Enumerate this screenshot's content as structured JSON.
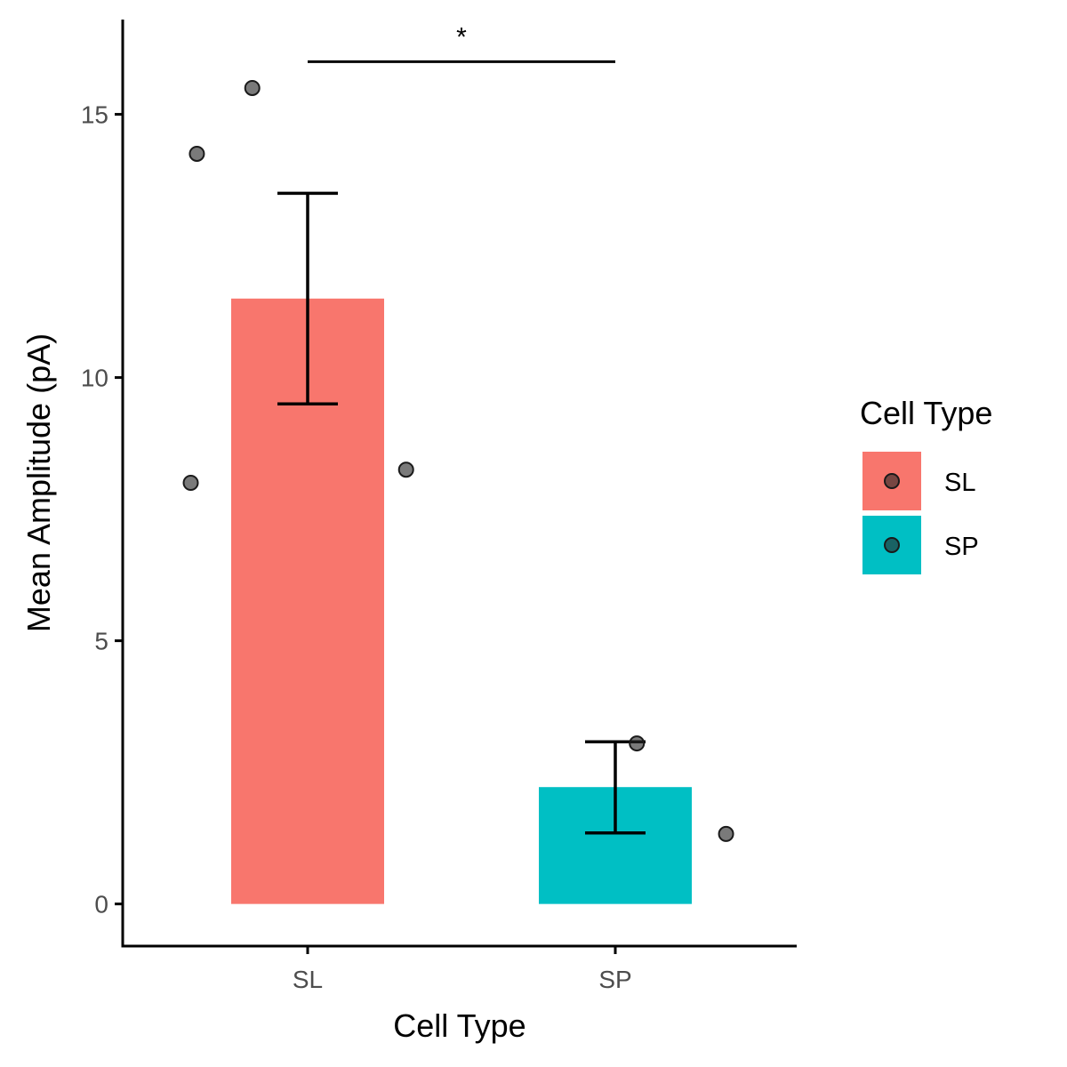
{
  "chart_data": {
    "type": "bar",
    "xlabel": "Cell Type",
    "ylabel": "Mean Amplitude (pA)",
    "categories": [
      "SL",
      "SP"
    ],
    "values": [
      11.5,
      2.22
    ],
    "error_low": [
      9.5,
      1.35
    ],
    "error_high": [
      13.5,
      3.08
    ],
    "bar_colors": [
      "#F8766D",
      "#00BFC4"
    ],
    "points": [
      {
        "category": "SL",
        "offset": -0.38,
        "value": 8.0
      },
      {
        "category": "SL",
        "offset": -0.36,
        "value": 14.25
      },
      {
        "category": "SL",
        "offset": -0.18,
        "value": 15.5
      },
      {
        "category": "SL",
        "offset": 0.32,
        "value": 8.25
      },
      {
        "category": "SP",
        "offset": 0.07,
        "value": 3.05
      },
      {
        "category": "SP",
        "offset": 0.36,
        "value": 1.33
      }
    ],
    "yticks": [
      0,
      5,
      10,
      15
    ],
    "ylim": [
      -0.8,
      16.8
    ],
    "grid": false,
    "significance": {
      "label": "*",
      "from": "SL",
      "to": "SP",
      "y": 16.0
    },
    "legend": {
      "title": "Cell Type",
      "position": "right",
      "entries": [
        {
          "label": "SL",
          "color": "#F8766D"
        },
        {
          "label": "SP",
          "color": "#00BFC4"
        }
      ]
    }
  }
}
